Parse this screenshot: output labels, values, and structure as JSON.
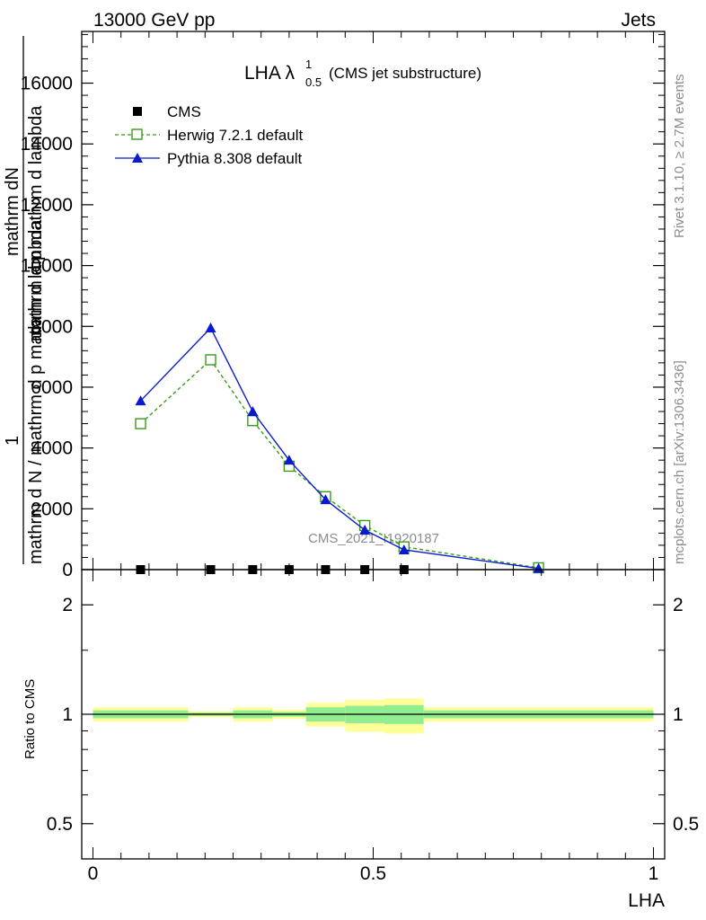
{
  "header": {
    "energy_label": "13000 GeV pp",
    "category_label": "Jets"
  },
  "side_labels": {
    "rivet": "Rivet 3.1.10, ≥ 2.7M events",
    "mcplots": "mcplots.cern.ch [arXiv:1306.3436]"
  },
  "watermark": "CMS_2021_I1920187",
  "colors": {
    "cms": "#000000",
    "herwig": "#3a9a1a",
    "pythia": "#0a1ad0",
    "band_inner": "#90ee90",
    "band_outer": "#ffff99"
  },
  "chart_data": [
    {
      "type": "line",
      "panel": "main",
      "title_main": "LHA λ",
      "title_sup": "1",
      "title_sub": "0.5",
      "title_suffix": "(CMS jet substructure)",
      "ylabel_numerator_top": "mathrm dN",
      "ylabel_numerator_top2": "mathrm d p mathrm d lambda",
      "ylabel_one": "1",
      "ylabel_denominator": "mathrm d N / mathrm d p mathrm d lambda",
      "xlim": [
        -0.02,
        1.02
      ],
      "ylim": [
        0,
        17700
      ],
      "yticks": [
        {
          "value": 0,
          "label": "0"
        },
        {
          "value": 2000,
          "label": "2000"
        },
        {
          "value": 4000,
          "label": "4000"
        },
        {
          "value": 6000,
          "label": "6000"
        },
        {
          "value": 8000,
          "label": "8000"
        },
        {
          "value": 10000,
          "label": "10000"
        },
        {
          "value": 12000,
          "label": "12000"
        },
        {
          "value": 14000,
          "label": "14000"
        },
        {
          "value": 16000,
          "label": "16000"
        }
      ],
      "series": [
        {
          "name": "CMS",
          "marker": "square-filled",
          "x": [
            0.085,
            0.21,
            0.285,
            0.35,
            0.415,
            0.485,
            0.555
          ],
          "y": [
            0,
            0,
            0,
            0,
            0,
            0,
            0
          ]
        },
        {
          "name": "Herwig 7.2.1 default",
          "marker": "square-open",
          "dash": true,
          "x": [
            0.085,
            0.21,
            0.285,
            0.35,
            0.415,
            0.485,
            0.555,
            0.795
          ],
          "y": [
            4800,
            6900,
            4900,
            3400,
            2400,
            1450,
            750,
            60
          ]
        },
        {
          "name": "Pythia 8.308 default",
          "marker": "triangle-filled",
          "dash": false,
          "x": [
            0.085,
            0.21,
            0.285,
            0.35,
            0.415,
            0.485,
            0.555,
            0.795
          ],
          "y": [
            5550,
            7950,
            5200,
            3600,
            2300,
            1300,
            650,
            40
          ]
        }
      ]
    },
    {
      "type": "area",
      "panel": "ratio",
      "ylabel": "Ratio to CMS",
      "xlabel": "LHA",
      "xlim": [
        -0.02,
        1.02
      ],
      "ylim": [
        0.4,
        2.5
      ],
      "log_scale": true,
      "yticks": [
        {
          "value": 0.5,
          "label": "0.5"
        },
        {
          "value": 1,
          "label": "1"
        },
        {
          "value": 2,
          "label": "2"
        }
      ],
      "xticks": [
        {
          "value": 0,
          "label": "0"
        },
        {
          "value": 0.5,
          "label": "0.5"
        },
        {
          "value": 1,
          "label": "1"
        }
      ],
      "bins": [
        {
          "x0": 0.0,
          "x1": 0.17,
          "inner": [
            0.975,
            1.025
          ],
          "outer": [
            0.955,
            1.045
          ]
        },
        {
          "x0": 0.17,
          "x1": 0.25,
          "inner": [
            0.99,
            1.01
          ],
          "outer": [
            0.98,
            1.02
          ]
        },
        {
          "x0": 0.25,
          "x1": 0.32,
          "inner": [
            0.975,
            1.025
          ],
          "outer": [
            0.955,
            1.045
          ]
        },
        {
          "x0": 0.32,
          "x1": 0.38,
          "inner": [
            0.985,
            1.015
          ],
          "outer": [
            0.97,
            1.03
          ]
        },
        {
          "x0": 0.38,
          "x1": 0.45,
          "inner": [
            0.955,
            1.045
          ],
          "outer": [
            0.925,
            1.075
          ]
        },
        {
          "x0": 0.45,
          "x1": 0.52,
          "inner": [
            0.945,
            1.055
          ],
          "outer": [
            0.895,
            1.095
          ]
        },
        {
          "x0": 0.52,
          "x1": 0.59,
          "inner": [
            0.94,
            1.06
          ],
          "outer": [
            0.885,
            1.105
          ]
        },
        {
          "x0": 0.59,
          "x1": 1.0,
          "inner": [
            0.975,
            1.025
          ],
          "outer": [
            0.955,
            1.045
          ]
        }
      ]
    }
  ]
}
